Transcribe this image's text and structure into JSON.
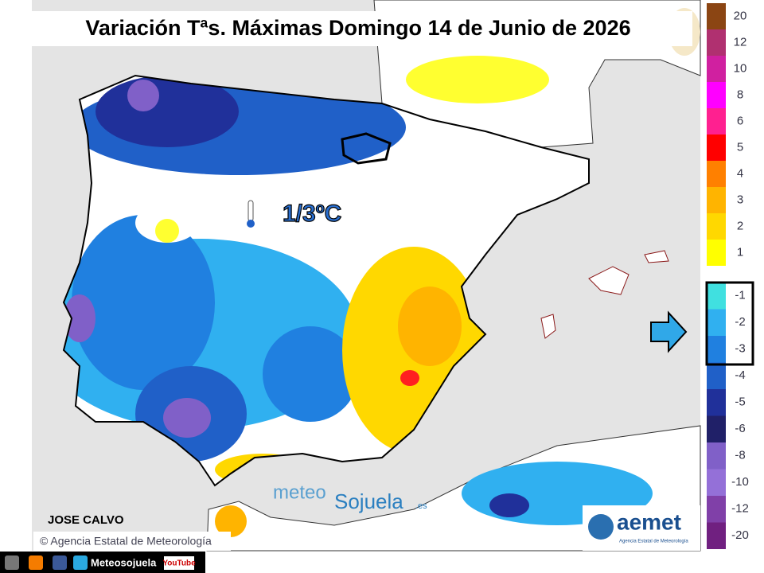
{
  "header": {
    "title": "Variación Tªs. Máximas Domingo 14 de Junio de 2026"
  },
  "annotation": {
    "text": "1/3ºC"
  },
  "legend": {
    "items": [
      {
        "label": "20",
        "color": "#8b4513"
      },
      {
        "label": "12",
        "color": "#b03070"
      },
      {
        "label": "10",
        "color": "#d020a0"
      },
      {
        "label": "8",
        "color": "#ff00ff"
      },
      {
        "label": "6",
        "color": "#ff2090"
      },
      {
        "label": "5",
        "color": "#ff0000"
      },
      {
        "label": "4",
        "color": "#ff8000"
      },
      {
        "label": "3",
        "color": "#ffb400"
      },
      {
        "label": "2",
        "color": "#ffd800"
      },
      {
        "label": "1",
        "color": "#ffff00"
      },
      {
        "label": "-1",
        "color": "#40e0e0"
      },
      {
        "label": "-2",
        "color": "#30b0f0"
      },
      {
        "label": "-3",
        "color": "#2080e0"
      },
      {
        "label": "-4",
        "color": "#2060c8"
      },
      {
        "label": "-5",
        "color": "#20309a"
      },
      {
        "label": "-6",
        "color": "#202068"
      },
      {
        "label": "-8",
        "color": "#8060c8"
      },
      {
        "label": "-10",
        "color": "#9470d8"
      },
      {
        "label": "-12",
        "color": "#8040a8"
      },
      {
        "label": "-20",
        "color": "#702080"
      }
    ]
  },
  "credits": {
    "author": "JOSE CALVO",
    "copyright": "© Agencia Estatal de Meteorología"
  },
  "watermark": {
    "part1": "meteo",
    "part2": "Sojuela",
    "part3": ".es"
  },
  "logo": {
    "name": "aemet",
    "subtitle": "Agencia Estatal de Meteorología"
  },
  "footer": {
    "site": "Meteosojuela",
    "video": "YouTube"
  }
}
